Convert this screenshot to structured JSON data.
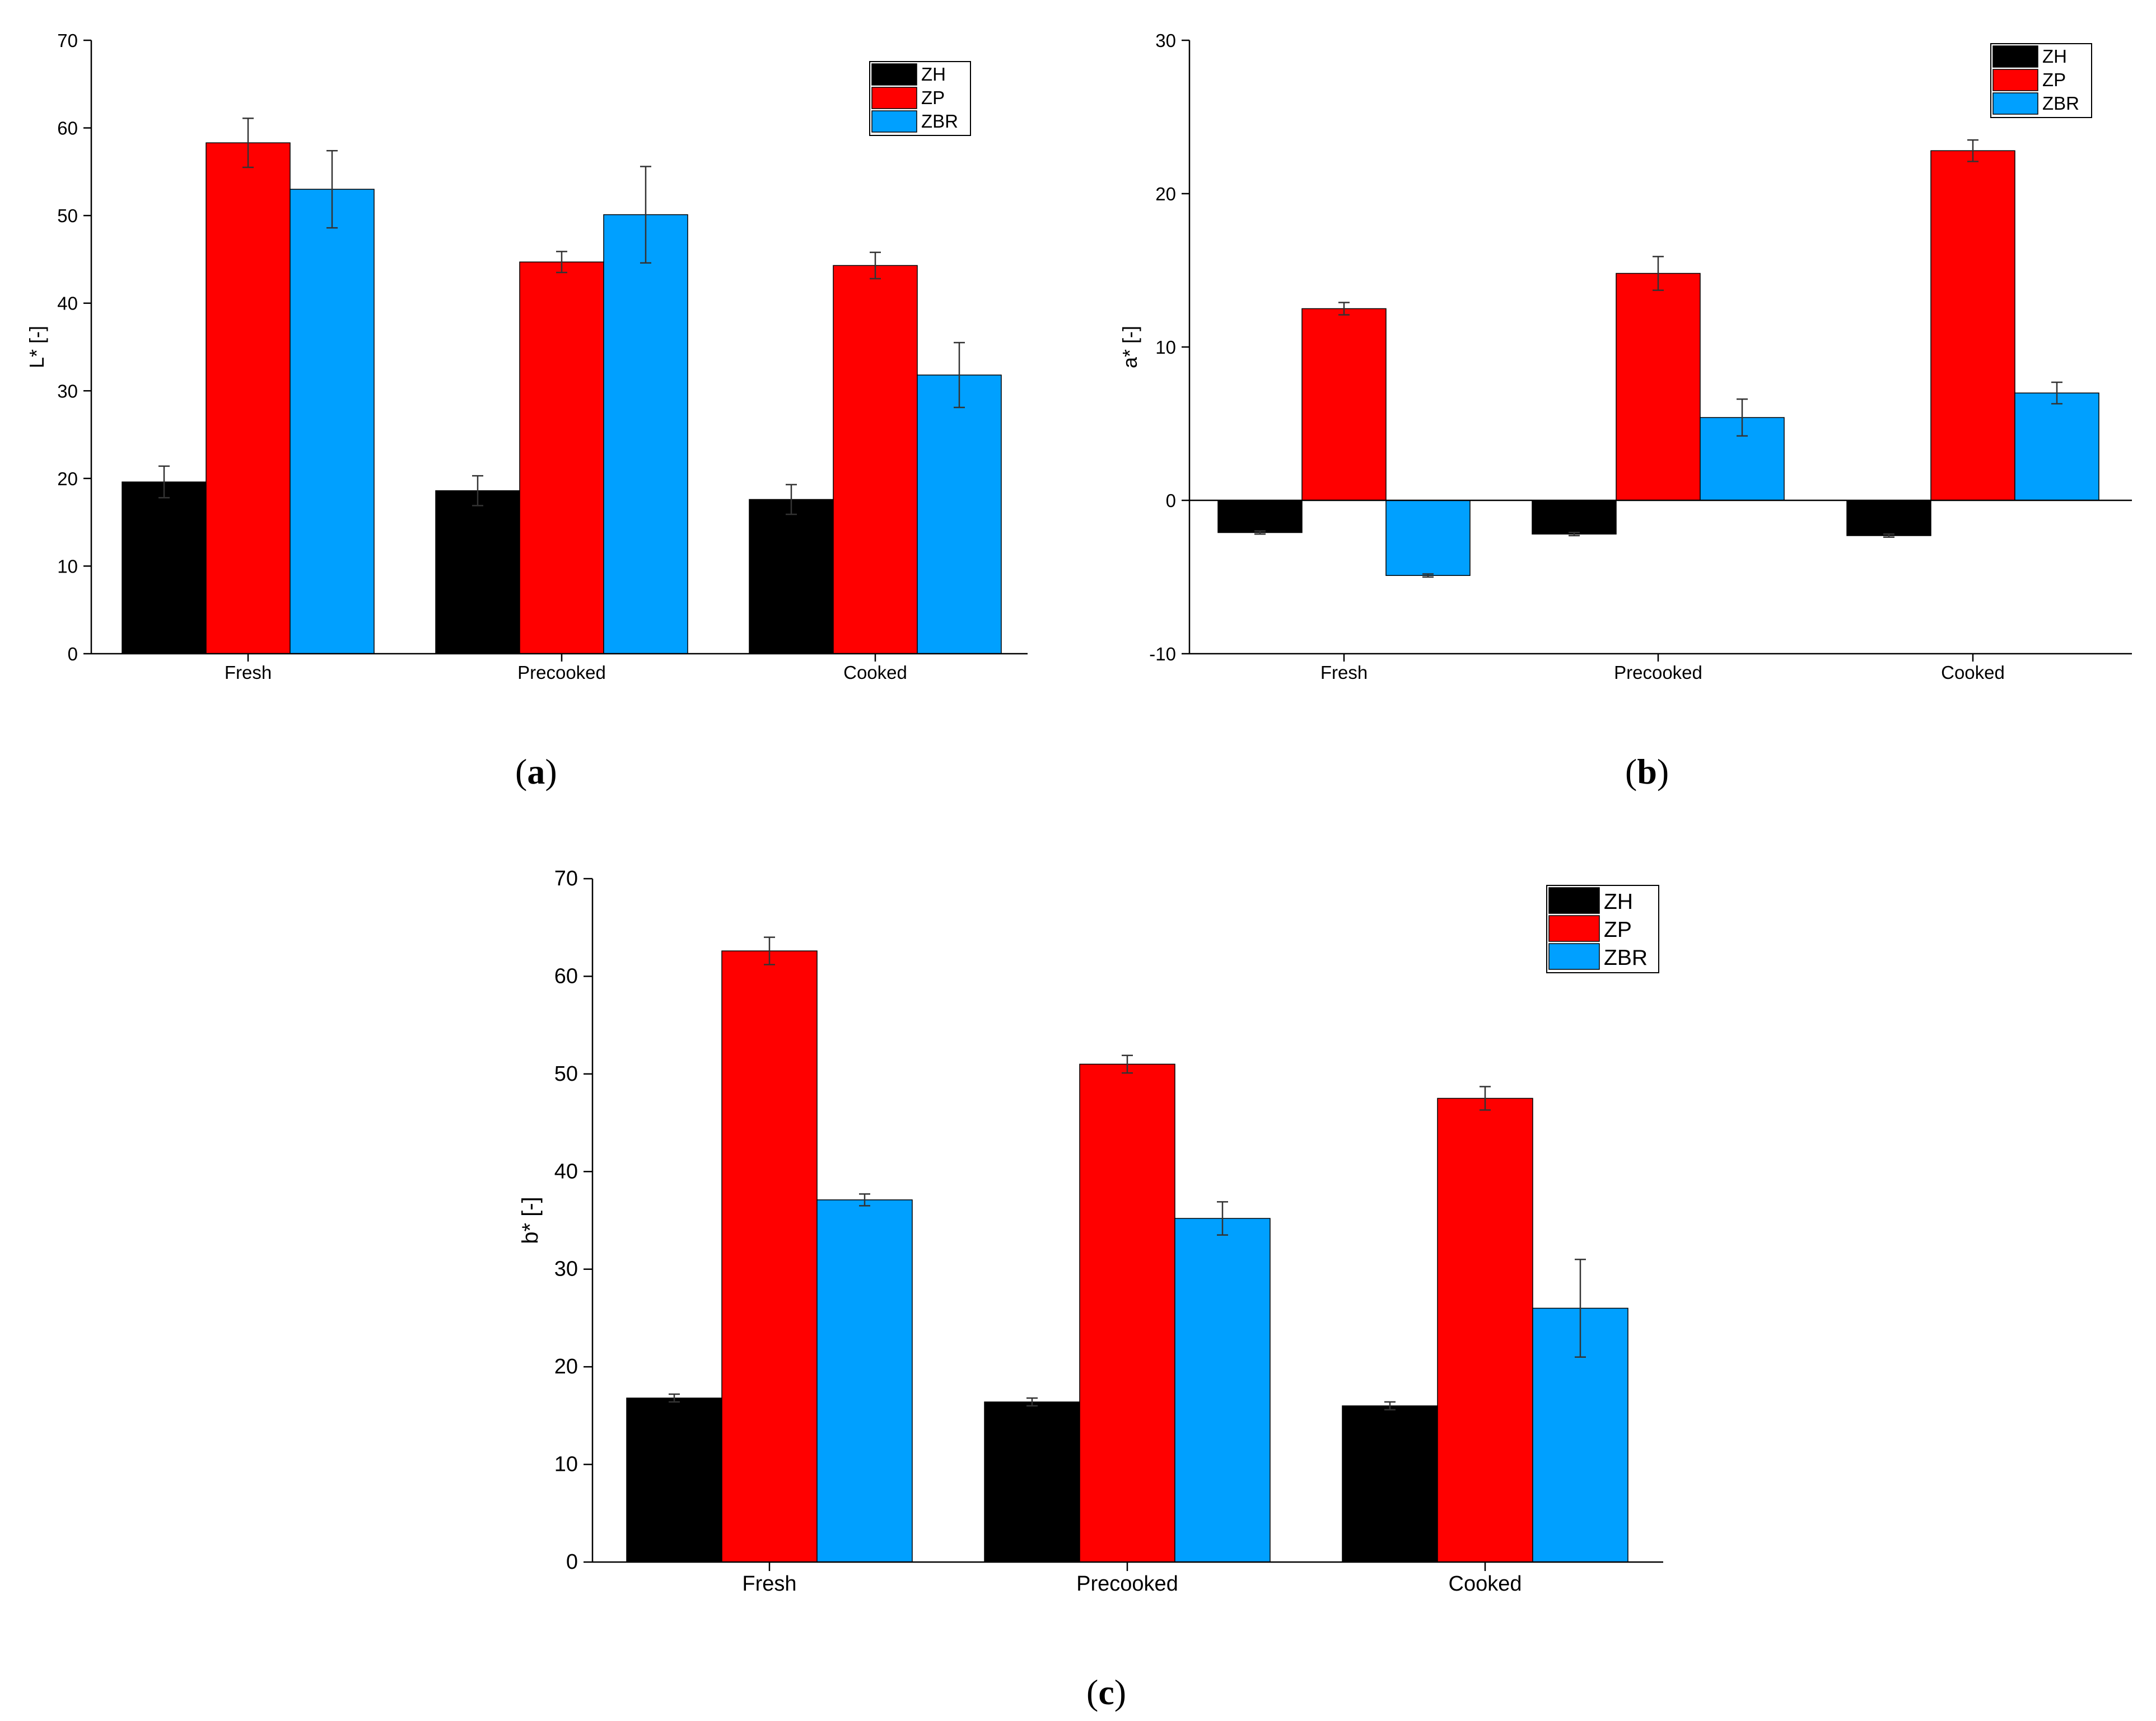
{
  "chart_data": [
    {
      "id": "a",
      "type": "bar",
      "panel_label": "a",
      "categories": [
        "Fresh",
        "Precooked",
        "Cooked"
      ],
      "ylabel": "L* [-]",
      "xlabel": "",
      "ylim": [
        0,
        70
      ],
      "yticks": [
        0,
        10,
        20,
        30,
        40,
        50,
        60,
        70
      ],
      "legend_position": "top-right",
      "series": [
        {
          "name": "ZH",
          "color": "#000000",
          "values": [
            19.6,
            18.6,
            17.6
          ],
          "errors": [
            1.8,
            1.7,
            1.7
          ]
        },
        {
          "name": "ZP",
          "color": "#ff0000",
          "values": [
            58.3,
            44.7,
            44.3
          ],
          "errors": [
            2.8,
            1.2,
            1.5
          ]
        },
        {
          "name": "ZBR",
          "color": "#00a0ff",
          "values": [
            53.0,
            50.1,
            31.8
          ],
          "errors": [
            4.4,
            5.5,
            3.7
          ]
        }
      ]
    },
    {
      "id": "b",
      "type": "bar",
      "panel_label": "b",
      "categories": [
        "Fresh",
        "Precooked",
        "Cooked"
      ],
      "ylabel": "a* [-]",
      "xlabel": "",
      "ylim": [
        -10,
        30
      ],
      "yticks": [
        -10,
        0,
        10,
        20,
        30
      ],
      "legend_position": "top-right",
      "series": [
        {
          "name": "ZH",
          "color": "#000000",
          "values": [
            -2.1,
            -2.2,
            -2.3
          ],
          "errors": [
            0.1,
            0.1,
            0.1
          ]
        },
        {
          "name": "ZP",
          "color": "#ff0000",
          "values": [
            12.5,
            14.8,
            22.8
          ],
          "errors": [
            0.4,
            1.1,
            0.7
          ]
        },
        {
          "name": "ZBR",
          "color": "#00a0ff",
          "values": [
            -4.9,
            5.4,
            7.0
          ],
          "errors": [
            0.1,
            1.2,
            0.7
          ]
        }
      ]
    },
    {
      "id": "c",
      "type": "bar",
      "panel_label": "c",
      "categories": [
        "Fresh",
        "Precooked",
        "Cooked"
      ],
      "ylabel": "b* [-]",
      "xlabel": "",
      "ylim": [
        0,
        70
      ],
      "yticks": [
        0,
        10,
        20,
        30,
        40,
        50,
        60,
        70
      ],
      "legend_position": "top-right",
      "series": [
        {
          "name": "ZH",
          "color": "#000000",
          "values": [
            16.8,
            16.4,
            16.0
          ],
          "errors": [
            0.4,
            0.4,
            0.4
          ]
        },
        {
          "name": "ZP",
          "color": "#ff0000",
          "values": [
            62.6,
            51.0,
            47.5
          ],
          "errors": [
            1.4,
            0.9,
            1.2
          ]
        },
        {
          "name": "ZBR",
          "color": "#00a0ff",
          "values": [
            37.1,
            35.2,
            26.0
          ],
          "errors": [
            0.6,
            1.7,
            5.0
          ]
        }
      ]
    }
  ]
}
